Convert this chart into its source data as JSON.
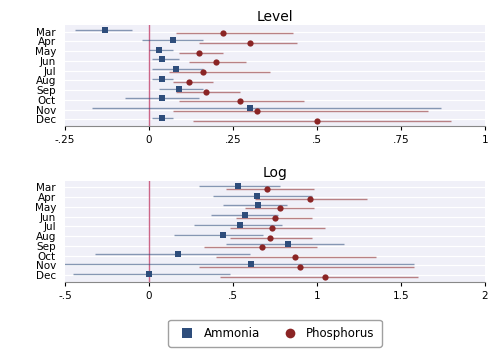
{
  "title_top": "Level",
  "title_bottom": "Log",
  "months": [
    "Mar",
    "Apr",
    "May",
    "Jun",
    "Jul",
    "Aug",
    "Sep",
    "Oct",
    "Nov",
    "Dec"
  ],
  "level": {
    "ammonia": {
      "est": [
        -0.13,
        0.07,
        0.03,
        0.04,
        0.08,
        0.04,
        0.09,
        0.04,
        0.3,
        0.04
      ],
      "lo": [
        -0.22,
        -0.02,
        0.0,
        0.01,
        0.01,
        0.01,
        0.03,
        -0.07,
        -0.17,
        0.01
      ],
      "hi": [
        -0.05,
        0.16,
        0.07,
        0.09,
        0.16,
        0.07,
        0.16,
        0.15,
        0.87,
        0.07
      ]
    },
    "phosphorus": {
      "est": [
        0.22,
        0.3,
        0.15,
        0.2,
        0.16,
        0.12,
        0.17,
        0.27,
        0.32,
        0.5
      ],
      "lo": [
        0.08,
        0.15,
        0.09,
        0.12,
        0.06,
        0.07,
        0.08,
        0.09,
        0.07,
        0.13
      ],
      "hi": [
        0.43,
        0.44,
        0.22,
        0.29,
        0.36,
        0.19,
        0.27,
        0.46,
        0.83,
        0.9
      ]
    }
  },
  "log": {
    "ammonia": {
      "est": [
        0.53,
        0.64,
        0.65,
        0.57,
        0.54,
        0.44,
        0.83,
        0.17,
        0.61,
        0.0
      ],
      "lo": [
        0.3,
        0.38,
        0.44,
        0.37,
        0.27,
        0.15,
        0.46,
        -0.32,
        -0.55,
        -0.45
      ],
      "hi": [
        0.78,
        0.97,
        0.82,
        0.77,
        0.79,
        0.68,
        1.16,
        0.6,
        1.58,
        0.48
      ]
    },
    "phosphorus": {
      "est": [
        0.7,
        0.96,
        0.78,
        0.75,
        0.73,
        0.72,
        0.67,
        0.87,
        0.9,
        1.05
      ],
      "lo": [
        0.46,
        0.63,
        0.57,
        0.52,
        0.48,
        0.48,
        0.33,
        0.4,
        0.3,
        0.42
      ],
      "hi": [
        0.98,
        1.3,
        0.98,
        0.97,
        1.05,
        0.97,
        1.0,
        1.35,
        1.58,
        1.6
      ]
    }
  },
  "ammonia_color": "#2E4D7B",
  "phosphorus_color": "#8B2525",
  "vline_color": "#CC6688",
  "xlim_level": [
    -0.25,
    1.0
  ],
  "xticks_level": [
    -0.25,
    0,
    0.25,
    0.5,
    0.75,
    1.0
  ],
  "xtick_labels_level": [
    "-.25",
    "0",
    ".25",
    ".5",
    ".75",
    "1"
  ],
  "xlim_log": [
    -0.5,
    2.0
  ],
  "xticks_log": [
    -0.5,
    0,
    0.5,
    1.0,
    1.5,
    2.0
  ],
  "xtick_labels_log": [
    "-.5",
    "0",
    ".5",
    "1",
    "1.5",
    "2"
  ],
  "bg_color": "#F0F0F8",
  "line_alpha": 0.55,
  "title_fontsize": 10,
  "tick_fontsize": 7.5
}
